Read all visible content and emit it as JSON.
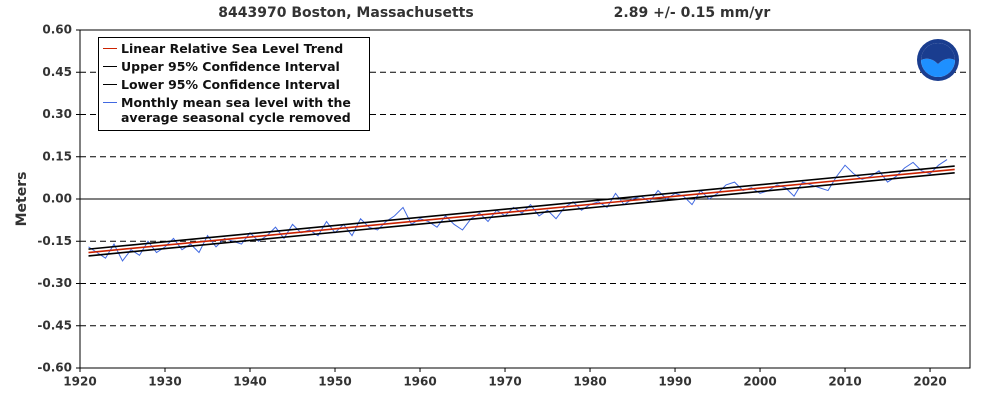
{
  "chart_data": {
    "type": "line",
    "title": "8443970 Boston, Massachusetts",
    "subtitle": "2.89 +/-  0.15 mm/yr",
    "y_label": "Meters",
    "xlim": [
      1920,
      2024.7
    ],
    "ylim": [
      -0.6,
      0.6
    ],
    "xticks": [
      1920,
      1930,
      1940,
      1950,
      1960,
      1970,
      1980,
      1990,
      2000,
      2010,
      2020
    ],
    "yticks": [
      {
        "value": 0.6,
        "label": "0.60"
      },
      {
        "value": 0.45,
        "label": "0.45"
      },
      {
        "value": 0.3,
        "label": "0.30"
      },
      {
        "value": 0.15,
        "label": "0.15"
      },
      {
        "value": 0,
        "label": "0.00"
      },
      {
        "value": -0.15,
        "label": "-0.15"
      },
      {
        "value": -0.3,
        "label": "-0.30"
      },
      {
        "value": -0.45,
        "label": "-0.45"
      },
      {
        "value": -0.6,
        "label": "-0.60"
      }
    ],
    "grid": true,
    "legend": "upper left",
    "series": [
      {
        "name": "Monthly mean sea level with the average seasonal cycle removed",
        "color": "#4169e1",
        "x": [
          1921,
          1922,
          1923,
          1924,
          1925,
          1926,
          1927,
          1928,
          1929,
          1930,
          1931,
          1932,
          1933,
          1934,
          1935,
          1936,
          1937,
          1938,
          1939,
          1940,
          1941,
          1942,
          1943,
          1944,
          1945,
          1946,
          1947,
          1948,
          1949,
          1950,
          1951,
          1952,
          1953,
          1954,
          1955,
          1956,
          1957,
          1958,
          1959,
          1960,
          1961,
          1962,
          1963,
          1964,
          1965,
          1966,
          1967,
          1968,
          1969,
          1970,
          1971,
          1972,
          1973,
          1974,
          1975,
          1976,
          1977,
          1978,
          1979,
          1980,
          1981,
          1982,
          1983,
          1984,
          1985,
          1986,
          1987,
          1988,
          1989,
          1990,
          1991,
          1992,
          1993,
          1994,
          1995,
          1996,
          1997,
          1998,
          1999,
          2000,
          2001,
          2002,
          2003,
          2004,
          2005,
          2006,
          2007,
          2008,
          2009,
          2010,
          2011,
          2012,
          2013,
          2014,
          2015,
          2016,
          2017,
          2018,
          2019,
          2020,
          2021,
          2022
        ],
        "values": [
          -0.17,
          -0.19,
          -0.21,
          -0.16,
          -0.22,
          -0.18,
          -0.2,
          -0.15,
          -0.19,
          -0.17,
          -0.14,
          -0.18,
          -0.16,
          -0.19,
          -0.13,
          -0.17,
          -0.14,
          -0.15,
          -0.16,
          -0.12,
          -0.15,
          -0.13,
          -0.1,
          -0.14,
          -0.09,
          -0.12,
          -0.11,
          -0.13,
          -0.08,
          -0.12,
          -0.09,
          -0.13,
          -0.07,
          -0.1,
          -0.11,
          -0.08,
          -0.06,
          -0.03,
          -0.09,
          -0.07,
          -0.08,
          -0.1,
          -0.06,
          -0.09,
          -0.11,
          -0.07,
          -0.05,
          -0.08,
          -0.04,
          -0.06,
          -0.03,
          -0.05,
          -0.02,
          -0.06,
          -0.04,
          -0.07,
          -0.03,
          -0.01,
          -0.04,
          -0.02,
          -0.01,
          -0.03,
          0.02,
          -0.02,
          0.0,
          0.01,
          -0.01,
          0.03,
          0.0,
          0.02,
          0.01,
          -0.02,
          0.03,
          0.0,
          0.02,
          0.05,
          0.06,
          0.03,
          0.04,
          0.02,
          0.03,
          0.05,
          0.04,
          0.01,
          0.06,
          0.05,
          0.04,
          0.03,
          0.08,
          0.12,
          0.09,
          0.07,
          0.08,
          0.1,
          0.06,
          0.08,
          0.11,
          0.13,
          0.1,
          0.09,
          0.12,
          0.14
        ]
      },
      {
        "name": "Upper 95% Confidence Interval",
        "color": "#000000",
        "x": [
          1921,
          2022.9
        ],
        "values": [
          -0.178,
          0.117
        ]
      },
      {
        "name": "Lower 95% Confidence Interval",
        "color": "#000000",
        "x": [
          1921,
          2022.9
        ],
        "values": [
          -0.202,
          0.093
        ]
      },
      {
        "name": "Linear Relative Sea Level Trend",
        "color": "#cc2200",
        "x": [
          1921,
          2022.9
        ],
        "values": [
          -0.19,
          0.105
        ]
      }
    ],
    "legend_order": [
      3,
      1,
      2,
      0
    ]
  }
}
